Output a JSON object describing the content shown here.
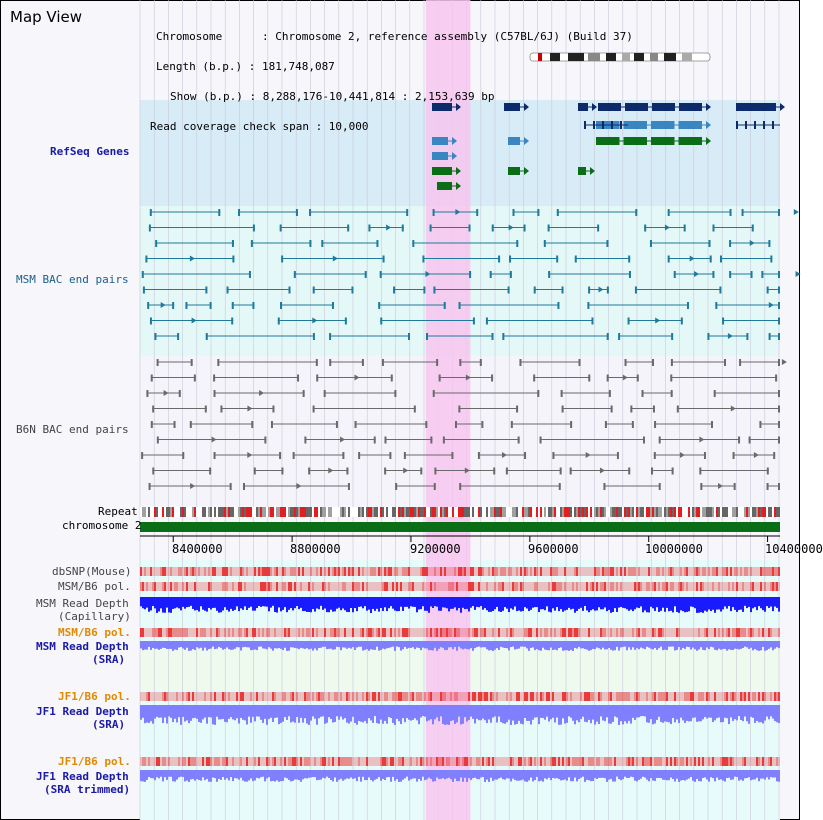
{
  "title": "Map View",
  "info": {
    "chromosome": "Chromosome      : Chromosome 2, reference assembly (C57BL/6J) (Build 37)",
    "length": "Length (b.p.) : 181,748,087",
    "show": "Show (b.p.) : 8,288,176-10,441,814 : 2,153,639 bp",
    "coverage": "Read coverage check span : 10,000"
  },
  "tracks": {
    "refseq": "RefSeq Genes",
    "msm_bac": "MSM BAC end pairs",
    "b6n_bac": "B6N BAC end pairs",
    "repeat": "Repeat",
    "chromosome": "chromosome 2",
    "dbsnp": "dbSNP(Mouse)",
    "msm_b6_pol_1": "MSM/B6 pol.",
    "msm_read_depth_cap_1": "MSM Read Depth",
    "msm_read_depth_cap_2": "(Capillary)",
    "msm_b6_pol_2": "MSM/B6 pol.",
    "msm_read_depth_sra_1": "MSM Read Depth",
    "msm_read_depth_sra_2": "(SRA)",
    "jf1_b6_pol_1": "JF1/B6 pol.",
    "jf1_read_depth_sra_1": "JF1 Read Depth",
    "jf1_read_depth_sra_2": "(SRA)",
    "jf1_b6_pol_2": "JF1/B6 pol.",
    "jf1_read_depth_trim_1": "JF1 Read Depth",
    "jf1_read_depth_trim_2": "(SRA trimmed)"
  },
  "axis": {
    "range": [
      8288176,
      10441814
    ],
    "ticks": [
      "8400000",
      "8800000",
      "9200000",
      "9600000",
      "10000000",
      "10400000"
    ],
    "highlight": [
      9250000,
      9400000
    ]
  },
  "colors": {
    "refseq_dark": "#0d2b6b",
    "refseq_mid": "#3a86c0",
    "refseq_green": "#0a6e16",
    "bac_teal": "#1f7a9c",
    "bac_gray": "#6a6a6a",
    "highlight": "#f7c6ee",
    "chromosome": "#0a6e16",
    "depth_blue": "#1a1aff",
    "depth_light": "#8080ff"
  }
}
